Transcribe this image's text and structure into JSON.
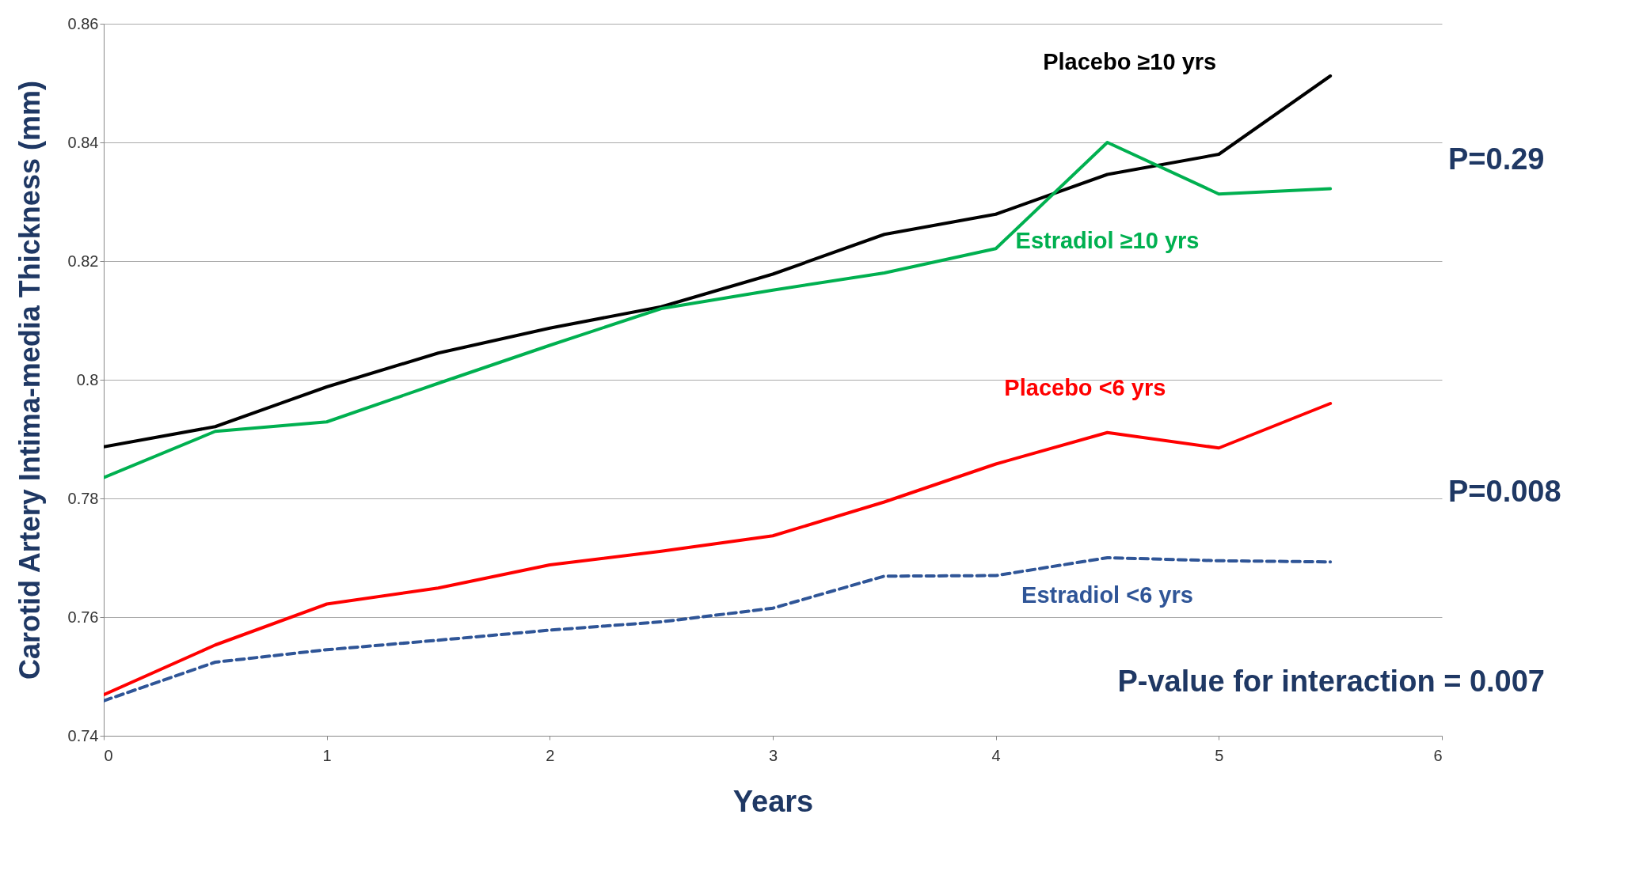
{
  "chart_data": {
    "type": "line",
    "xlabel": "Years",
    "ylabel": "Carotid Artery Intima-media Thickness (mm)",
    "x": [
      0,
      0.5,
      1,
      1.5,
      2,
      2.5,
      3,
      3.5,
      4,
      4.5,
      5,
      5.5
    ],
    "xlim": [
      0,
      6
    ],
    "xticks": [
      0,
      1,
      2,
      3,
      4,
      5,
      6
    ],
    "ylim": [
      0.74,
      0.86
    ],
    "yticks": [
      0.74,
      0.76,
      0.78,
      0.8,
      0.82,
      0.84,
      0.86
    ],
    "grid": "y",
    "legend": false,
    "marker": "none",
    "series": [
      {
        "name": "Placebo ≥10 yrs",
        "color": "#000000",
        "line_style": "solid",
        "values": [
          0.7887,
          0.7921,
          0.7988,
          0.8045,
          0.8087,
          0.8123,
          0.8178,
          0.8245,
          0.8279,
          0.8346,
          0.838,
          0.8512
        ]
      },
      {
        "name": "Estradiol ≥10 yrs",
        "color": "#00b050",
        "line_style": "solid",
        "values": [
          0.7835,
          0.7913,
          0.7929,
          0.7994,
          0.8058,
          0.812,
          0.8151,
          0.818,
          0.8221,
          0.84,
          0.8313,
          0.8322
        ]
      },
      {
        "name": "Placebo <6 yrs",
        "color": "#ff0000",
        "line_style": "solid",
        "values": [
          0.7469,
          0.7553,
          0.7622,
          0.7649,
          0.7688,
          0.7711,
          0.7737,
          0.7794,
          0.7858,
          0.7911,
          0.7885,
          0.796
        ]
      },
      {
        "name": "Estradiol <6 yrs",
        "color": "#2f5597",
        "line_style": "dashed",
        "values": [
          0.7459,
          0.7524,
          0.7545,
          0.7561,
          0.7578,
          0.7592,
          0.7615,
          0.7669,
          0.767,
          0.77,
          0.7695,
          0.7693
        ]
      }
    ],
    "annotations": [
      "P=0.29",
      "P=0.008",
      "P-value for interaction = 0.007"
    ]
  }
}
